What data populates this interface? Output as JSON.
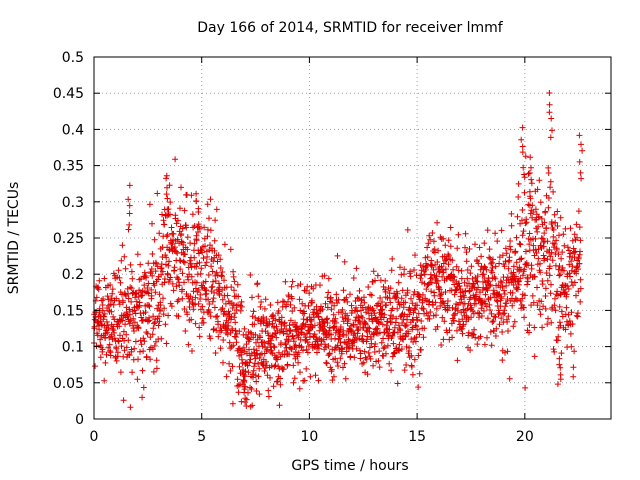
{
  "chart_data": {
    "type": "scatter",
    "title": "Day 166 of 2014, SRMTID for receiver lmmf",
    "xlabel": "GPS time / hours",
    "ylabel": "SRMTID / TECUs",
    "xlim": [
      0,
      24
    ],
    "ylim": [
      0,
      0.5
    ],
    "x_ticks": [
      "0",
      "5",
      "10",
      "15",
      "20"
    ],
    "y_ticks": [
      "0",
      "0.05",
      "0.1",
      "0.15",
      "0.2",
      "0.25",
      "0.3",
      "0.35",
      "0.4",
      "0.45",
      "0.5"
    ],
    "grid": true,
    "marker": "+",
    "color": "#e00000",
    "trend_hours": [
      0,
      1,
      2,
      3,
      3.5,
      4,
      5,
      5.5,
      6,
      6.5,
      7,
      7.5,
      8,
      8.5,
      9,
      10,
      11,
      12,
      13,
      14,
      15,
      15.5,
      16,
      17,
      18,
      19,
      20,
      20.5,
      21,
      21.5,
      22,
      22.5
    ],
    "trend_srmtid": [
      0.13,
      0.135,
      0.15,
      0.17,
      0.23,
      0.22,
      0.2,
      0.2,
      0.15,
      0.12,
      0.08,
      0.1,
      0.11,
      0.1,
      0.12,
      0.13,
      0.12,
      0.12,
      0.13,
      0.14,
      0.14,
      0.2,
      0.19,
      0.17,
      0.17,
      0.18,
      0.22,
      0.23,
      0.24,
      0.2,
      0.17,
      0.2
    ],
    "spread_hours": [
      0,
      1.5,
      3.5,
      5,
      7,
      8,
      9,
      13,
      15,
      16,
      18,
      20,
      21,
      22,
      22.5
    ],
    "spread_srmtid": [
      0.035,
      0.045,
      0.055,
      0.05,
      0.045,
      0.035,
      0.035,
      0.035,
      0.045,
      0.045,
      0.035,
      0.06,
      0.065,
      0.06,
      0.05
    ],
    "peaks": [
      {
        "hour": 1.6,
        "srmtid": 0.32
      },
      {
        "hour": 3.4,
        "srmtid": 0.34
      },
      {
        "hour": 4.8,
        "srmtid": 0.31
      },
      {
        "hour": 7.0,
        "srmtid": 0.02
      },
      {
        "hour": 19.9,
        "srmtid": 0.4
      },
      {
        "hour": 20.3,
        "srmtid": 0.35
      },
      {
        "hour": 21.2,
        "srmtid": 0.45
      },
      {
        "hour": 21.6,
        "srmtid": 0.05
      },
      {
        "hour": 22.6,
        "srmtid": 0.39
      }
    ],
    "sample_count": 2300
  }
}
